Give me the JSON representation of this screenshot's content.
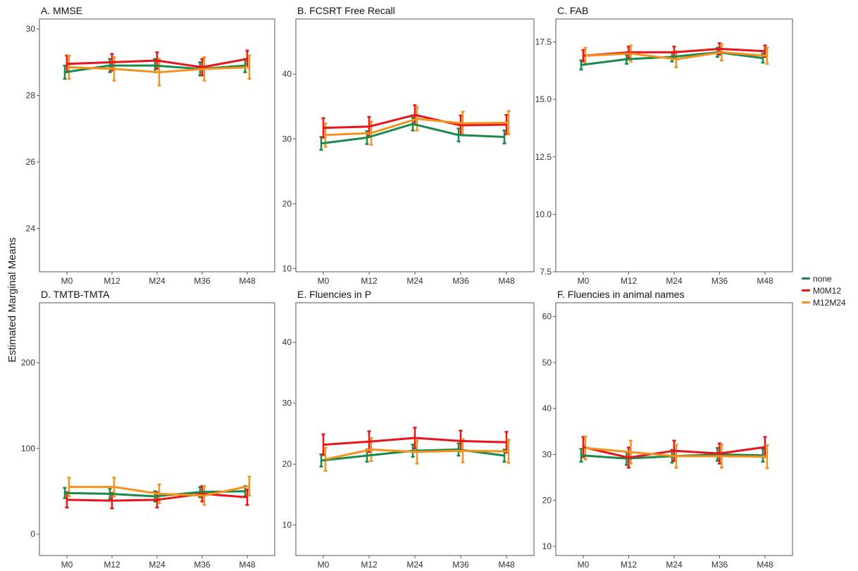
{
  "figure": {
    "ylabel": "Estimated Marginal Means"
  },
  "legend": {
    "items": [
      {
        "name": "none",
        "color": "#1a8a4a"
      },
      {
        "name": "M0M12",
        "color": "#e8141b"
      },
      {
        "name": "M12M24",
        "color": "#f5921e"
      }
    ]
  },
  "chart_data": [
    {
      "type": "line",
      "title": "A. MMSE",
      "categories": [
        "M0",
        "M12",
        "M24",
        "M36",
        "M48"
      ],
      "ylim": [
        22.7,
        30.3
      ],
      "yticks": [
        24,
        26,
        28,
        30
      ],
      "series": [
        {
          "name": "none",
          "values": [
            28.7,
            28.9,
            28.9,
            28.8,
            28.9
          ],
          "err": [
            0.2,
            0.2,
            0.2,
            0.2,
            0.2
          ]
        },
        {
          "name": "M0M12",
          "values": [
            28.95,
            29.0,
            29.05,
            28.85,
            29.1
          ],
          "err": [
            0.25,
            0.25,
            0.25,
            0.25,
            0.25
          ]
        },
        {
          "name": "M12M24",
          "values": [
            28.85,
            28.8,
            28.7,
            28.8,
            28.85
          ],
          "err": [
            0.35,
            0.35,
            0.4,
            0.35,
            0.35
          ]
        }
      ]
    },
    {
      "type": "line",
      "title": "B. FCSRT Free Recall",
      "categories": [
        "M0",
        "M12",
        "M24",
        "M36",
        "M48"
      ],
      "ylim": [
        9.5,
        48.5
      ],
      "yticks": [
        10,
        20,
        30,
        40
      ],
      "series": [
        {
          "name": "none",
          "values": [
            29.3,
            30.2,
            32.3,
            30.6,
            30.3
          ],
          "err": [
            1.0,
            1.0,
            1.0,
            1.0,
            1.0
          ]
        },
        {
          "name": "M0M12",
          "values": [
            31.7,
            31.9,
            33.7,
            32.1,
            32.2
          ],
          "err": [
            1.5,
            1.5,
            1.5,
            1.5,
            1.5
          ]
        },
        {
          "name": "M12M24",
          "values": [
            30.6,
            30.9,
            33.1,
            32.4,
            32.5
          ],
          "err": [
            1.8,
            1.8,
            1.8,
            1.8,
            1.8
          ]
        }
      ]
    },
    {
      "type": "line",
      "title": "C. FAB",
      "categories": [
        "M0",
        "M12",
        "M24",
        "M36",
        "M48"
      ],
      "ylim": [
        7.5,
        18.5
      ],
      "yticks": [
        7.5,
        10.0,
        12.5,
        15.0,
        17.5
      ],
      "ytick_labels": [
        "7.5",
        "10.0",
        "12.5",
        "15.0",
        "17.5"
      ],
      "series": [
        {
          "name": "none",
          "values": [
            16.5,
            16.75,
            16.85,
            17.05,
            16.8
          ],
          "err": [
            0.2,
            0.2,
            0.2,
            0.2,
            0.2
          ]
        },
        {
          "name": "M0M12",
          "values": [
            16.9,
            17.05,
            17.05,
            17.2,
            17.1
          ],
          "err": [
            0.25,
            0.25,
            0.25,
            0.25,
            0.25
          ]
        },
        {
          "name": "M12M24",
          "values": [
            16.9,
            17.0,
            16.75,
            17.05,
            16.9
          ],
          "err": [
            0.35,
            0.35,
            0.35,
            0.35,
            0.35
          ]
        }
      ]
    },
    {
      "type": "line",
      "title": "D. TMTB-TMTA",
      "categories": [
        "M0",
        "M12",
        "M24",
        "M36",
        "M48"
      ],
      "ylim": [
        -25,
        270
      ],
      "yticks": [
        0,
        100,
        200
      ],
      "series": [
        {
          "name": "none",
          "values": [
            48,
            47,
            44,
            49,
            50
          ],
          "err": [
            6,
            6,
            6,
            6,
            6
          ]
        },
        {
          "name": "M0M12",
          "values": [
            40,
            39,
            40,
            47,
            43
          ],
          "err": [
            9,
            9,
            9,
            9,
            9
          ]
        },
        {
          "name": "M12M24",
          "values": [
            55,
            55,
            47,
            45,
            56
          ],
          "err": [
            11,
            11,
            11,
            11,
            11
          ]
        }
      ]
    },
    {
      "type": "line",
      "title": "E. Fluencies in P",
      "categories": [
        "M0",
        "M12",
        "M24",
        "M36",
        "M48"
      ],
      "ylim": [
        5,
        46.5
      ],
      "yticks": [
        10,
        20,
        30,
        40
      ],
      "series": [
        {
          "name": "none",
          "values": [
            20.6,
            21.4,
            22.2,
            22.4,
            21.4
          ],
          "err": [
            1.0,
            1.0,
            1.0,
            1.0,
            1.0
          ]
        },
        {
          "name": "M0M12",
          "values": [
            23.2,
            23.7,
            24.3,
            23.8,
            23.6
          ],
          "err": [
            1.7,
            1.7,
            1.7,
            1.7,
            1.7
          ]
        },
        {
          "name": "M12M24",
          "values": [
            20.8,
            22.4,
            22.0,
            22.2,
            22.1
          ],
          "err": [
            1.9,
            1.9,
            1.9,
            1.9,
            1.9
          ]
        }
      ]
    },
    {
      "type": "line",
      "title": "F. Fluencies in animal names",
      "categories": [
        "M0",
        "M12",
        "M24",
        "M36",
        "M48"
      ],
      "ylim": [
        8,
        63
      ],
      "yticks": [
        10,
        20,
        30,
        40,
        50,
        60
      ],
      "series": [
        {
          "name": "none",
          "values": [
            29.8,
            29.1,
            29.6,
            30.0,
            29.8
          ],
          "err": [
            1.4,
            1.4,
            1.4,
            1.4,
            1.4
          ]
        },
        {
          "name": "M0M12",
          "values": [
            31.6,
            29.3,
            30.8,
            30.2,
            31.6
          ],
          "err": [
            2.2,
            2.2,
            2.2,
            2.2,
            2.2
          ]
        },
        {
          "name": "M12M24",
          "values": [
            31.4,
            30.5,
            29.6,
            29.6,
            29.5
          ],
          "err": [
            2.5,
            2.5,
            2.5,
            2.5,
            2.5
          ]
        }
      ]
    }
  ]
}
